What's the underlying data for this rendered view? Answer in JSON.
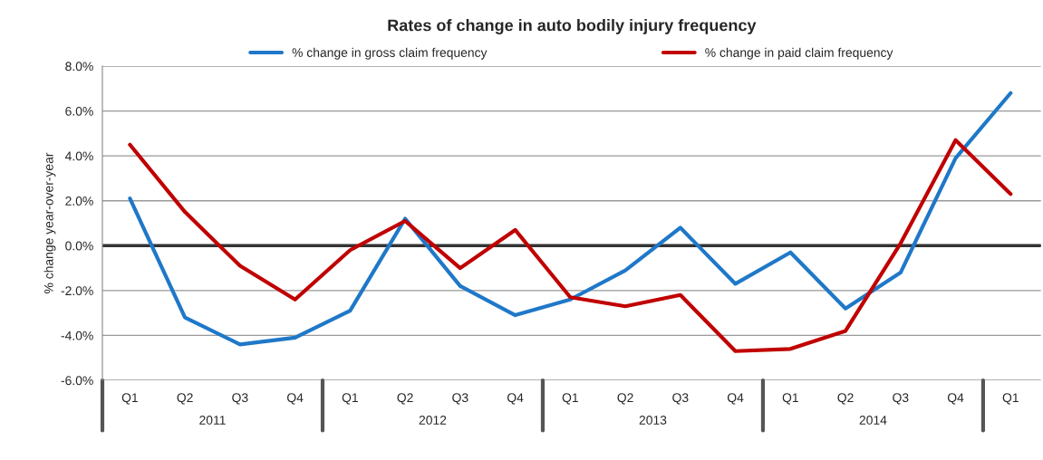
{
  "chart_data": {
    "type": "line",
    "title": "Rates of change in auto bodily injury frequency",
    "ylabel": "% change year-over-year",
    "categories": [
      "Q1",
      "Q2",
      "Q3",
      "Q4",
      "Q1",
      "Q2",
      "Q3",
      "Q4",
      "Q1",
      "Q2",
      "Q3",
      "Q4",
      "Q1",
      "Q2",
      "Q3",
      "Q4",
      "Q1"
    ],
    "series": [
      {
        "name": "% change in gross claim frequency",
        "color": "#1f78c8",
        "values": [
          2.1,
          -3.2,
          -4.4,
          -4.1,
          -2.9,
          1.2,
          -1.8,
          -3.1,
          -2.4,
          -1.1,
          0.8,
          -1.7,
          -0.3,
          -2.8,
          -1.2,
          3.9,
          6.8
        ]
      },
      {
        "name": "% change in paid claim frequency",
        "color": "#c00000",
        "values": [
          4.5,
          1.5,
          -0.9,
          -2.4,
          -0.2,
          1.1,
          -1.0,
          0.7,
          -2.3,
          -2.7,
          -2.2,
          -4.7,
          -4.6,
          -3.8,
          0.1,
          4.7,
          2.3
        ]
      }
    ],
    "annotations": [
      "2011",
      "2012",
      "2013",
      "2014"
    ],
    "ylim": [
      -6,
      8
    ],
    "yticks": [
      {
        "value": -6,
        "label": "-6.0%"
      },
      {
        "value": -4,
        "label": "-4.0%"
      },
      {
        "value": -2,
        "label": "-2.0%"
      },
      {
        "value": 0,
        "label": "0.0%"
      },
      {
        "value": 2,
        "label": "2.0%"
      },
      {
        "value": 4,
        "label": "4.0%"
      },
      {
        "value": 6,
        "label": "6.0%"
      },
      {
        "value": 8,
        "label": "8.0%"
      }
    ],
    "ref_lines": [
      {
        "axis": "y",
        "value": 0,
        "color": "#333333"
      }
    ],
    "grid": "y",
    "legend": "top",
    "marker": "none",
    "line_style": "solid"
  }
}
